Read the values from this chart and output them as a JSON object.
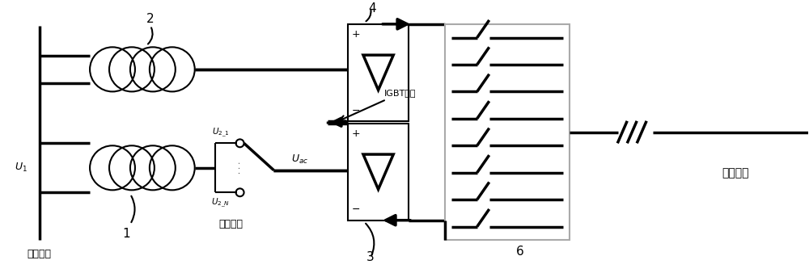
{
  "bg_color": "#ffffff",
  "line_color": "#000000",
  "lw": 1.5,
  "lw_thick": 2.5,
  "fig_width": 10.0,
  "fig_height": 3.38,
  "labels": {
    "ac_grid": "交流电网",
    "secondary_tap": "副边抽头",
    "igbt_short": "IGBT短路",
    "ice_line": "覆冰线路",
    "U1": "$U_1$",
    "U2_1": "$U_{2\\_1}$",
    "U2_N": "$U_{2\\_N}$",
    "Uac": "$U_{ac}$",
    "label_1": "1",
    "label_2": "2",
    "label_3": "3",
    "label_4": "4",
    "label_6": "6",
    "plus": "+",
    "minus": "−"
  }
}
